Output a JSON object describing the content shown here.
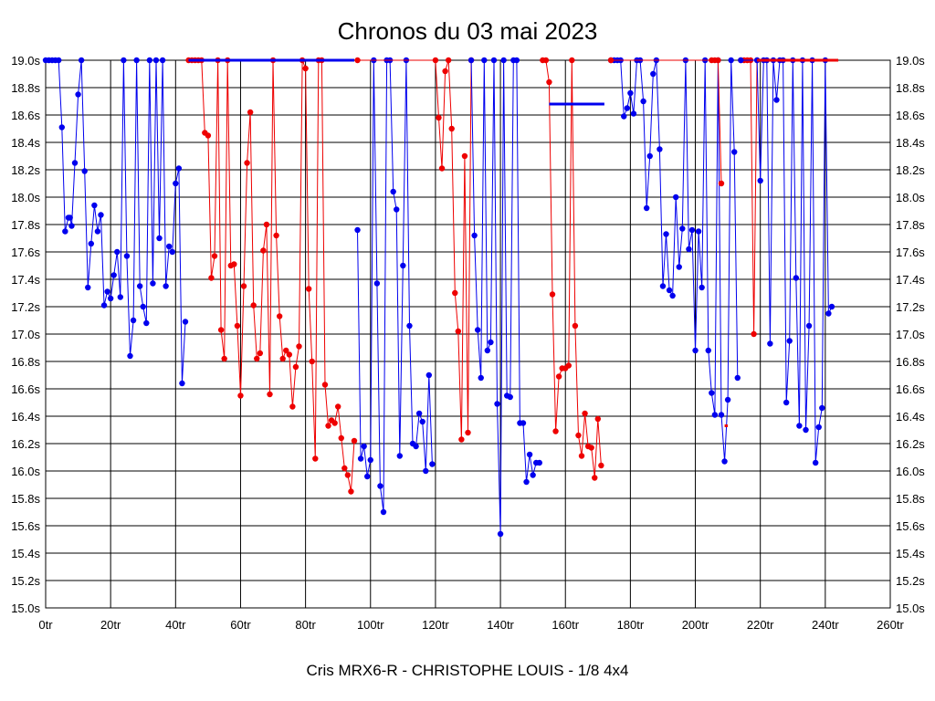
{
  "chart_data": {
    "type": "line",
    "title": "Chronos du 03 mai 2023",
    "subtitle": "Cris MRX6-R - CHRISTOPHE LOUIS - 1/8 4x4",
    "xlabel": "",
    "ylabel": "",
    "xlim": [
      0,
      260
    ],
    "ylim": [
      15.0,
      19.0
    ],
    "grid": true,
    "x_tick_values": [
      0,
      20,
      40,
      60,
      80,
      100,
      120,
      140,
      160,
      180,
      200,
      220,
      240,
      260
    ],
    "x_tick_labels": [
      "0tr",
      "20tr",
      "40tr",
      "60tr",
      "80tr",
      "100tr",
      "120tr",
      "140tr",
      "160tr",
      "180tr",
      "200tr",
      "220tr",
      "240tr",
      "260tr"
    ],
    "y_tick_values": [
      15.0,
      15.2,
      15.4,
      15.6,
      15.8,
      16.0,
      16.2,
      16.4,
      16.6,
      16.8,
      17.0,
      17.2,
      17.4,
      17.6,
      17.8,
      18.0,
      18.2,
      18.4,
      18.6,
      18.8,
      19.0
    ],
    "y_tick_labels": [
      "15.0s",
      "15.2s",
      "15.4s",
      "15.6s",
      "15.8s",
      "16.0s",
      "16.2s",
      "16.4s",
      "16.6s",
      "16.8s",
      "17.0s",
      "17.2s",
      "17.4s",
      "17.6s",
      "17.8s",
      "18.0s",
      "18.2s",
      "18.4s",
      "18.6s",
      "18.8s",
      "19.0s"
    ],
    "colors": {
      "blue": "#0000ee",
      "red": "#ee0000",
      "grid": "#000000"
    },
    "series": [
      {
        "name": "s1",
        "color": "blue",
        "points": [
          [
            0,
            19
          ],
          [
            1,
            19
          ],
          [
            2,
            19
          ],
          [
            3,
            19
          ],
          [
            4,
            19
          ],
          [
            5,
            18.51
          ],
          [
            6,
            17.75
          ],
          [
            7,
            17.85
          ],
          [
            7.5,
            17.85
          ],
          [
            8,
            17.79
          ],
          [
            9,
            18.25
          ],
          [
            10,
            18.75
          ],
          [
            11,
            19
          ],
          [
            12,
            18.19
          ],
          [
            13,
            17.34
          ],
          [
            14,
            17.66
          ],
          [
            15,
            17.94
          ],
          [
            16,
            17.75
          ],
          [
            17,
            17.87
          ],
          [
            18,
            17.21
          ],
          [
            19,
            17.31
          ],
          [
            20,
            17.26
          ],
          [
            21,
            17.43
          ],
          [
            22,
            17.6
          ],
          [
            23,
            17.27
          ],
          [
            24,
            19
          ],
          [
            25,
            17.57
          ],
          [
            26,
            16.84
          ],
          [
            27,
            17.1
          ],
          [
            28,
            19
          ],
          [
            29,
            17.35
          ],
          [
            30,
            17.2
          ],
          [
            31,
            17.08
          ],
          [
            32,
            19
          ],
          [
            33,
            17.37
          ],
          [
            34,
            19
          ],
          [
            35,
            17.7
          ],
          [
            36,
            19
          ],
          [
            37,
            17.35
          ],
          [
            38,
            17.64
          ],
          [
            39,
            17.6
          ],
          [
            40,
            18.1
          ],
          [
            41,
            18.21
          ],
          [
            42,
            16.64
          ],
          [
            43,
            17.09
          ]
        ]
      },
      {
        "name": "s2",
        "color": "red",
        "points": [
          [
            44,
            19
          ],
          [
            45,
            19
          ],
          [
            46,
            19
          ],
          [
            47,
            19
          ],
          [
            48,
            19
          ],
          [
            49,
            18.47
          ],
          [
            50,
            18.45
          ],
          [
            51,
            17.41
          ],
          [
            52,
            17.57
          ],
          [
            53,
            19
          ],
          [
            54,
            17.03
          ],
          [
            55,
            16.82
          ],
          [
            56,
            19
          ],
          [
            57,
            17.5
          ],
          [
            58,
            17.51
          ],
          [
            59,
            17.06
          ],
          [
            60,
            16.55
          ],
          [
            61,
            17.35
          ],
          [
            62,
            18.25
          ],
          [
            63,
            18.62
          ],
          [
            64,
            17.21
          ],
          [
            65,
            16.82
          ],
          [
            66,
            16.86
          ],
          [
            67,
            17.61
          ],
          [
            68,
            17.8
          ],
          [
            69,
            16.56
          ],
          [
            70,
            19
          ],
          [
            71,
            17.72
          ],
          [
            72,
            17.13
          ],
          [
            73,
            16.82
          ],
          [
            74,
            16.88
          ],
          [
            75,
            16.85
          ],
          [
            76,
            16.47
          ],
          [
            77,
            16.76
          ],
          [
            78,
            16.91
          ],
          [
            79,
            19
          ],
          [
            80,
            18.94
          ],
          [
            81,
            17.33
          ],
          [
            82,
            16.8
          ],
          [
            83,
            16.09
          ],
          [
            84,
            19
          ],
          [
            85,
            19
          ],
          [
            86,
            16.63
          ],
          [
            87,
            16.33
          ],
          [
            88,
            16.37
          ],
          [
            89,
            16.35
          ],
          [
            90,
            16.47
          ],
          [
            91,
            16.24
          ],
          [
            92,
            16.02
          ],
          [
            93,
            15.97
          ],
          [
            94,
            15.85
          ],
          [
            95,
            16.22
          ]
        ]
      },
      {
        "name": "s3",
        "color": "blue",
        "points": [
          [
            44,
            19
          ],
          [
            95,
            19
          ]
        ]
      },
      {
        "name": "s4",
        "color": "blue",
        "points": [
          [
            96,
            17.76
          ],
          [
            97,
            16.09
          ],
          [
            98,
            16.18
          ],
          [
            99,
            15.96
          ],
          [
            100,
            16.08
          ],
          [
            101,
            19
          ],
          [
            102,
            17.37
          ],
          [
            103,
            15.89
          ],
          [
            104,
            15.7
          ],
          [
            105,
            19
          ],
          [
            106,
            19
          ],
          [
            107,
            18.04
          ],
          [
            108,
            17.91
          ],
          [
            109,
            16.11
          ],
          [
            110,
            17.5
          ],
          [
            111,
            19
          ],
          [
            112,
            17.06
          ],
          [
            113,
            16.2
          ],
          [
            114,
            16.18
          ],
          [
            115,
            16.42
          ],
          [
            116,
            16.36
          ],
          [
            117,
            16
          ],
          [
            118,
            16.7
          ],
          [
            119,
            16.05
          ]
        ]
      },
      {
        "name": "s5",
        "color": "red",
        "points": [
          [
            96,
            19
          ],
          [
            120,
            19
          ],
          [
            121,
            18.58
          ],
          [
            122,
            18.21
          ],
          [
            123,
            18.92
          ],
          [
            124,
            19
          ],
          [
            125,
            18.5
          ],
          [
            126,
            17.3
          ],
          [
            127,
            17.02
          ],
          [
            128,
            16.23
          ],
          [
            129,
            18.3
          ],
          [
            130,
            16.28
          ],
          [
            131,
            19
          ]
        ]
      },
      {
        "name": "s6",
        "color": "blue",
        "points": [
          [
            131,
            19
          ],
          [
            132,
            17.72
          ],
          [
            133,
            17.03
          ],
          [
            134,
            16.68
          ],
          [
            135,
            19
          ],
          [
            136,
            16.88
          ],
          [
            137,
            16.94
          ],
          [
            138,
            19
          ],
          [
            139,
            16.49
          ],
          [
            140,
            15.54
          ],
          [
            141,
            19
          ],
          [
            142,
            16.55
          ],
          [
            143,
            16.54
          ],
          [
            144,
            19
          ],
          [
            145,
            19
          ],
          [
            146,
            16.35
          ],
          [
            147,
            16.35
          ],
          [
            148,
            15.92
          ],
          [
            149,
            16.12
          ],
          [
            150,
            15.97
          ],
          [
            151,
            16.06
          ],
          [
            152,
            16.06
          ]
        ]
      },
      {
        "name": "s7",
        "color": "red",
        "points": [
          [
            153,
            19
          ],
          [
            154,
            19
          ],
          [
            155,
            18.84
          ],
          [
            156,
            17.29
          ],
          [
            157,
            16.29
          ],
          [
            158,
            16.69
          ],
          [
            159,
            16.75
          ],
          [
            160,
            16.75
          ],
          [
            161,
            16.77
          ],
          [
            162,
            19
          ],
          [
            163,
            17.06
          ],
          [
            164,
            16.26
          ],
          [
            165,
            16.11
          ],
          [
            166,
            16.42
          ],
          [
            167,
            16.18
          ],
          [
            168,
            16.17
          ],
          [
            169,
            15.95
          ],
          [
            170,
            16.38
          ],
          [
            171,
            16.04
          ]
        ]
      },
      {
        "name": "s8",
        "color": "blue",
        "points": [
          [
            155,
            18.68
          ],
          [
            172,
            18.68
          ]
        ]
      },
      {
        "name": "s9",
        "color": "blue",
        "points": [
          [
            174,
            19
          ],
          [
            175,
            19
          ],
          [
            176,
            19
          ],
          [
            177,
            19
          ],
          [
            178,
            18.59
          ],
          [
            179,
            18.65
          ],
          [
            180,
            18.76
          ],
          [
            181,
            18.61
          ],
          [
            182,
            19
          ],
          [
            183,
            19
          ],
          [
            184,
            18.7
          ],
          [
            185,
            17.92
          ],
          [
            186,
            18.3
          ],
          [
            187,
            18.9
          ],
          [
            188,
            19
          ],
          [
            189,
            18.35
          ],
          [
            190,
            17.35
          ],
          [
            191,
            17.73
          ],
          [
            192,
            17.32
          ],
          [
            193,
            17.28
          ],
          [
            194,
            18
          ],
          [
            195,
            17.49
          ],
          [
            196,
            17.77
          ],
          [
            197,
            19
          ],
          [
            198,
            17.62
          ],
          [
            199,
            17.76
          ],
          [
            200,
            16.88
          ],
          [
            201,
            17.75
          ],
          [
            202,
            17.34
          ],
          [
            203,
            19
          ],
          [
            204,
            16.88
          ],
          [
            205,
            16.57
          ],
          [
            206,
            16.41
          ],
          [
            207,
            19
          ],
          [
            208,
            16.41
          ],
          [
            209,
            16.07
          ],
          [
            210,
            16.52
          ],
          [
            211,
            19
          ],
          [
            212,
            18.33
          ],
          [
            213,
            16.68
          ]
        ]
      },
      {
        "name": "s10",
        "color": "red",
        "points": [
          [
            174,
            19
          ],
          [
            205,
            19
          ],
          [
            206,
            19
          ],
          [
            207,
            19
          ],
          [
            208,
            18.1
          ]
        ]
      },
      {
        "name": "s11",
        "color": "red",
        "points": [
          [
            209,
            16.33
          ],
          [
            210,
            16.33
          ]
        ]
      },
      {
        "name": "s12",
        "color": "red",
        "points": [
          [
            214,
            19
          ],
          [
            215,
            19
          ],
          [
            216,
            19
          ],
          [
            217,
            19
          ],
          [
            218,
            17
          ],
          [
            219,
            19
          ]
        ]
      },
      {
        "name": "s13",
        "color": "blue",
        "points": [
          [
            214,
            19
          ],
          [
            219,
            19
          ],
          [
            220,
            18.12
          ],
          [
            221,
            19
          ],
          [
            222,
            19
          ],
          [
            223,
            16.93
          ],
          [
            224,
            19
          ],
          [
            225,
            18.71
          ],
          [
            226,
            19
          ],
          [
            227,
            19
          ],
          [
            228,
            16.5
          ],
          [
            229,
            16.95
          ],
          [
            230,
            19
          ],
          [
            231,
            17.41
          ],
          [
            232,
            16.33
          ],
          [
            233,
            19
          ],
          [
            234,
            16.3
          ],
          [
            235,
            17.06
          ],
          [
            236,
            19
          ],
          [
            237,
            16.06
          ],
          [
            238,
            16.32
          ],
          [
            239,
            16.46
          ],
          [
            240,
            19
          ],
          [
            241,
            17.15
          ],
          [
            242,
            17.2
          ]
        ]
      },
      {
        "name": "s14",
        "color": "red",
        "points": [
          [
            219,
            19
          ],
          [
            244,
            19
          ]
        ]
      }
    ]
  }
}
